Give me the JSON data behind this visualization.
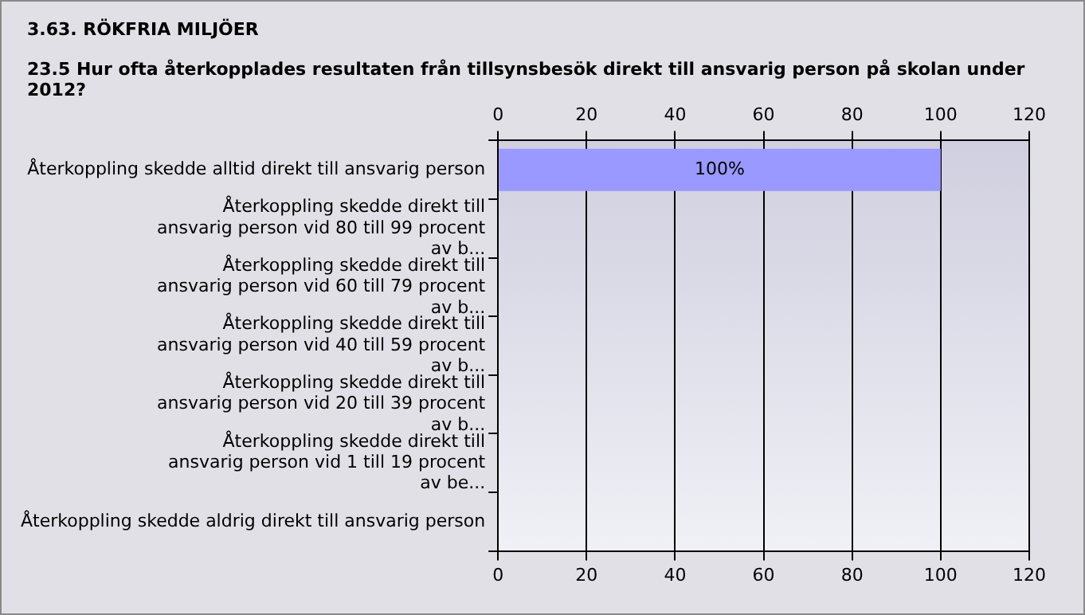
{
  "chart_data": {
    "type": "bar",
    "orientation": "horizontal",
    "title": "3.63. RÖKFRIA MILJÖER",
    "subtitle": "23.5 Hur ofta återkopplades resultaten från tillsynsbesök direkt till ansvarig person på skolan under 2012?",
    "categories": [
      "Återkoppling skedde alltid direkt till ansvarig person",
      "Återkoppling skedde direkt till ansvarig person vid 80 till 99 procent av b...",
      "Återkoppling skedde direkt till ansvarig person vid 60 till 79 procent av b...",
      "Återkoppling skedde direkt till ansvarig person vid 40 till 59 procent av b...",
      "Återkoppling skedde direkt till ansvarig person vid 20 till 39 procent av b...",
      "Återkoppling skedde direkt till ansvarig person vid 1 till 19 procent av be...",
      "Återkoppling skedde aldrig direkt till ansvarig person"
    ],
    "values": [
      100,
      0,
      0,
      0,
      0,
      0,
      0
    ],
    "value_labels": [
      "100%",
      null,
      null,
      null,
      null,
      null,
      null
    ],
    "color": "#9999ff",
    "xlim": [
      0,
      120
    ],
    "xticks": [
      0,
      20,
      40,
      60,
      80,
      100,
      120
    ],
    "x2lim": [
      0,
      120
    ],
    "x2ticks": [
      0,
      20,
      40,
      60,
      80,
      100,
      120
    ],
    "grid": "x",
    "legend": false
  }
}
